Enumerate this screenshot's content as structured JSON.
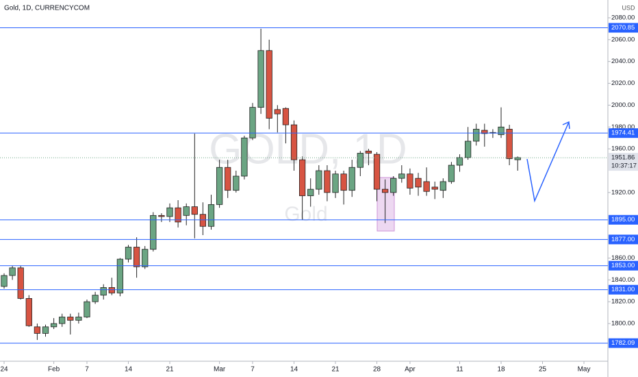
{
  "chart_data": {
    "type": "candlestick",
    "title": "Gold, 1D, CURRENCYCOM",
    "watermark": "GOLD, 1D",
    "watermark_subtitle": "Gold",
    "currency": "USD",
    "up_color": "#6ba583",
    "down_color": "#d75442",
    "level_color": "#2962ff",
    "xlim": [
      -0.496,
      72.89
    ],
    "xticks": [
      {
        "value": 0,
        "label": "24"
      },
      {
        "value": 6,
        "label": "Feb"
      },
      {
        "value": 10,
        "label": "7"
      },
      {
        "value": 15,
        "label": "14"
      },
      {
        "value": 20,
        "label": "21"
      },
      {
        "value": 26,
        "label": "Mar"
      },
      {
        "value": 30,
        "label": "7"
      },
      {
        "value": 35,
        "label": "14"
      },
      {
        "value": 40,
        "label": "21"
      },
      {
        "value": 45,
        "label": "28"
      },
      {
        "value": 49,
        "label": "Apr"
      },
      {
        "value": 55,
        "label": "11"
      },
      {
        "value": 60,
        "label": "18"
      },
      {
        "value": 65,
        "label": "25"
      },
      {
        "value": 70,
        "label": "May"
      }
    ],
    "ylim": [
      1765.5,
      2096.3
    ],
    "yticks": [
      {
        "value": 2080,
        "label": "2080.00"
      },
      {
        "value": 2060,
        "label": "2060.00"
      },
      {
        "value": 2040,
        "label": "2040.00"
      },
      {
        "value": 2020,
        "label": "2020.00"
      },
      {
        "value": 2000,
        "label": "2000.00"
      },
      {
        "value": 1980,
        "label": "1980.00"
      },
      {
        "value": 1960,
        "label": "1960.00"
      },
      {
        "value": 1920,
        "label": "1920.00"
      },
      {
        "value": 1860,
        "label": "1860.00"
      },
      {
        "value": 1840,
        "label": "1840.00"
      },
      {
        "value": 1820,
        "label": "1820.00"
      },
      {
        "value": 1800,
        "label": "1800.00"
      }
    ],
    "grid": false,
    "levels": [
      2070.85,
      1974.41,
      {
        "value": 1895,
        "label": "1895.00"
      },
      {
        "value": 1877,
        "label": "1877.00"
      },
      {
        "value": 1853,
        "label": "1853.00"
      },
      {
        "value": 1831,
        "label": "1831.00"
      },
      1782.09
    ],
    "last_price": 1951.86,
    "countdown": "10:37:17",
    "series": [
      {
        "name": "Gold",
        "open": [
          1834,
          1844,
          1851,
          1823,
          1797,
          1791,
          1797,
          1800,
          1806,
          1803,
          1806,
          1820,
          1826,
          1833,
          1828,
          1859,
          1870,
          1852,
          1868,
          1899,
          1898,
          1906,
          1899,
          1907,
          1900,
          1889,
          1909,
          1943,
          1922,
          1935,
          1970,
          1998,
          2050,
          1996,
          1997,
          1982,
          1950,
          1917,
          1923,
          1940,
          1920,
          1937,
          1922,
          1943,
          1958,
          1955,
          1923,
          1920,
          1933,
          1937,
          1933,
          1930,
          1925,
          1922,
          1930,
          1945,
          1952,
          1967,
          1977,
          1975,
          1973,
          1978,
          1950
        ],
        "high": [
          1846,
          1853,
          1853,
          1826,
          1800,
          1799,
          1805,
          1809,
          1809,
          1810,
          1822,
          1829,
          1836,
          1842,
          1860,
          1872,
          1879,
          1871,
          1902,
          1901,
          1910,
          1913,
          1910,
          1974,
          1911,
          1918,
          1950,
          1950,
          1940,
          1972,
          2002,
          2070,
          2060,
          2000,
          1998,
          1986,
          1953,
          1933,
          1945,
          1945,
          1940,
          1940,
          1950,
          1958,
          1960,
          1957,
          1932,
          1935,
          1945,
          1942,
          1938,
          1943,
          1930,
          1933,
          1948,
          1955,
          1980,
          1983,
          1983,
          1978,
          1998,
          1982,
          1953
        ],
        "low": [
          1832,
          1840,
          1822,
          1797,
          1785,
          1788,
          1795,
          1797,
          1790,
          1800,
          1805,
          1818,
          1822,
          1826,
          1825,
          1856,
          1842,
          1850,
          1866,
          1893,
          1893,
          1888,
          1890,
          1878,
          1881,
          1886,
          1906,
          1915,
          1920,
          1932,
          1968,
          1992,
          1978,
          1975,
          1965,
          1940,
          1895,
          1907,
          1918,
          1912,
          1915,
          1909,
          1916,
          1935,
          1945,
          1912,
          1892,
          1917,
          1929,
          1918,
          1917,
          1917,
          1914,
          1915,
          1928,
          1939,
          1950,
          1963,
          1962,
          1970,
          1970,
          1945,
          1940
        ],
        "close": [
          1844,
          1851,
          1823,
          1798,
          1791,
          1797,
          1800,
          1806,
          1803,
          1806,
          1820,
          1826,
          1833,
          1828,
          1859,
          1870,
          1852,
          1868,
          1899,
          1898,
          1906,
          1893,
          1907,
          1900,
          1889,
          1909,
          1943,
          1922,
          1935,
          1970,
          1998,
          2050,
          1988,
          1992,
          1982,
          1950,
          1917,
          1923,
          1940,
          1920,
          1937,
          1922,
          1943,
          1956,
          1956,
          1923,
          1920,
          1933,
          1937,
          1924,
          1925,
          1921,
          1923,
          1930,
          1945,
          1952,
          1967,
          1978,
          1974,
          1975,
          1980,
          1951,
          1952
        ]
      }
    ]
  }
}
